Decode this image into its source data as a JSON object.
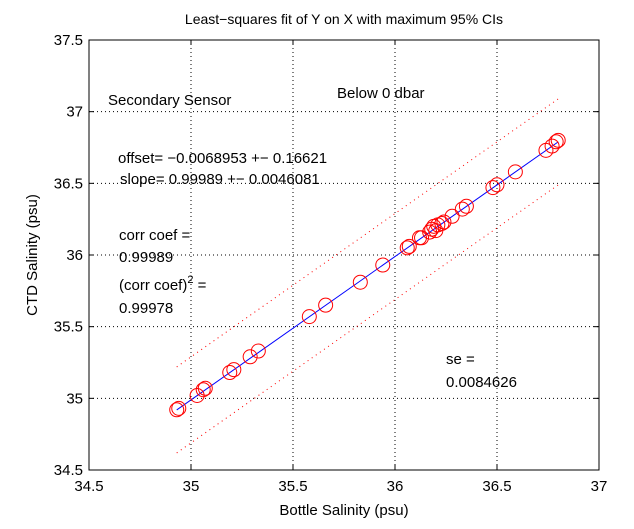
{
  "chart_data": {
    "type": "scatter",
    "title": "Least−squares fit of Y on X with maximum 95% CIs",
    "xlabel": "Bottle Salinity (psu)",
    "ylabel": "CTD Salinity (psu)",
    "xlim": [
      34.5,
      37
    ],
    "ylim": [
      34.5,
      37.5
    ],
    "xticks": [
      "34.5",
      "35",
      "35.5",
      "36",
      "36.5",
      "37"
    ],
    "yticks": [
      "34.5",
      "35",
      "35.5",
      "36",
      "36.5",
      "37",
      "37.5"
    ],
    "grid": true,
    "series": [
      {
        "marker": "circle",
        "color": "#ff0000",
        "x": [
          34.93,
          34.94,
          35.03,
          35.06,
          35.07,
          35.19,
          35.21,
          35.29,
          35.33,
          35.58,
          35.66,
          35.83,
          35.94,
          36.06,
          36.07,
          36.12,
          36.13,
          36.17,
          36.18,
          36.19,
          36.2,
          36.21,
          36.23,
          36.24,
          36.28,
          36.33,
          36.35,
          36.48,
          36.5,
          36.59,
          36.74,
          36.77,
          36.79,
          36.8
        ],
        "y": [
          34.92,
          34.93,
          35.02,
          35.06,
          35.07,
          35.18,
          35.2,
          35.29,
          35.33,
          35.57,
          35.65,
          35.81,
          35.93,
          36.05,
          36.06,
          36.12,
          36.12,
          36.16,
          36.18,
          36.2,
          36.17,
          36.21,
          36.22,
          36.23,
          36.27,
          36.32,
          36.34,
          36.47,
          36.49,
          36.58,
          36.73,
          36.76,
          36.79,
          36.8
        ]
      }
    ],
    "fit_line": {
      "color": "#0000ff",
      "offset": -0.0068953,
      "slope": 0.99989,
      "x_range": [
        34.93,
        36.8
      ]
    },
    "ci_lines": {
      "color": "#ff0000",
      "style": "dotted",
      "half_width": 0.3,
      "x_range": [
        34.93,
        36.8
      ]
    },
    "annotations": {
      "sensor": "Secondary Sensor",
      "depth": "Below 0 dbar",
      "offset_line": "offset= −0.0068953  +−  0.16621",
      "slope_line": "slope= 0.99989  +−  0.0046081",
      "corr_label": "corr coef =",
      "corr_value": "0.99989",
      "corr2_label_pre": "(corr coef)",
      "corr2_sup": "2",
      "corr2_label_post": " =",
      "corr2_value": "0.99978",
      "se_label": "se =",
      "se_value": "0.0084626"
    }
  }
}
